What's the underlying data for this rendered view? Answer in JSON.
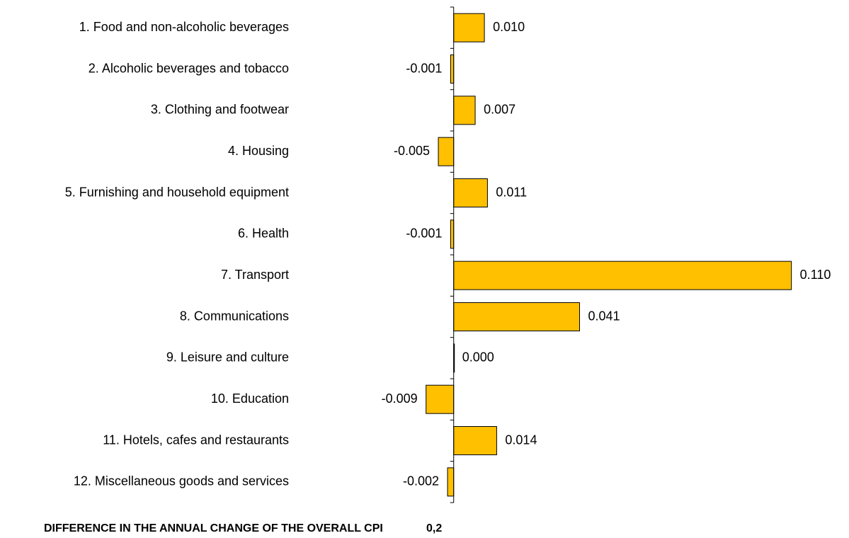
{
  "chart_data": {
    "type": "bar",
    "orientation": "horizontal",
    "categories": [
      "1. Food and non-alcoholic beverages",
      "2. Alcoholic beverages and tobacco",
      "3. Clothing and footwear",
      "4. Housing",
      "5. Furnishing and household equipment",
      "6. Health",
      "7. Transport",
      "8. Communications",
      "9. Leisure and culture",
      "10. Education",
      "11. Hotels, cafes and restaurants",
      "12. Miscellaneous goods and services"
    ],
    "values": [
      0.01,
      -0.001,
      0.007,
      -0.005,
      0.011,
      -0.001,
      0.11,
      0.041,
      0,
      -0.009,
      0.014,
      -0.002
    ],
    "value_labels": [
      "0.010",
      "-0.001",
      "0.007",
      "-0.005",
      "0.011",
      "-0.001",
      "0.110",
      "0.041",
      "0.000",
      "-0.009",
      "0.014",
      "-0.002"
    ],
    "color": "#ffc000",
    "xlim": [
      -0.02,
      0.12
    ],
    "footer": {
      "text": "DIFFERENCE  IN THE  ANNUAL  CHANGE  OF THE OVERALL  CPI",
      "value": "0,2"
    }
  }
}
